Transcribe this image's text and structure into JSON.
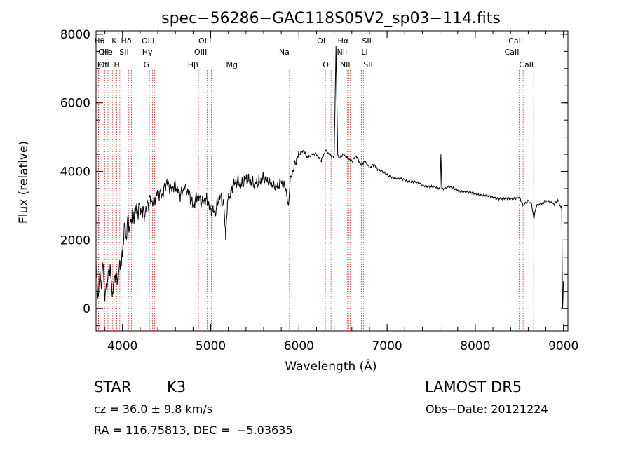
{
  "chart_data": {
    "type": "line",
    "title": "spec−56286−GAC118S05V2_sp03−114.fits",
    "xlabel": "Wavelength (Å)",
    "ylabel": "Flux (relative)",
    "xlim": [
      3700,
      9050
    ],
    "ylim": [
      -650,
      8100
    ],
    "xticks": [
      4000,
      5000,
      6000,
      7000,
      8000,
      9000
    ],
    "yticks": [
      0,
      2000,
      4000,
      6000,
      8000
    ],
    "grid": false,
    "series": [
      {
        "x": [
          3700,
          3720,
          3740,
          3760,
          3780,
          3800,
          3820,
          3840,
          3860,
          3880,
          3900,
          3920,
          3940,
          3960,
          3980,
          4000,
          4020,
          4040,
          4060,
          4080,
          4100,
          4150,
          4200,
          4250,
          4300,
          4350,
          4400,
          4450,
          4500,
          4550,
          4600,
          4650,
          4700,
          4750,
          4800,
          4850,
          4900,
          4950,
          5000,
          5050,
          5100,
          5150,
          5170,
          5190,
          5250,
          5300,
          5350,
          5400,
          5450,
          5500,
          5550,
          5600,
          5650,
          5700,
          5750,
          5800,
          5850,
          5880,
          5900,
          5950,
          6000,
          6050,
          6100,
          6150,
          6200,
          6250,
          6300,
          6350,
          6400,
          6420,
          6440,
          6460,
          6500,
          6550,
          6600,
          6650,
          6700,
          6750,
          6800,
          6850,
          6900,
          7000,
          7100,
          7200,
          7300,
          7400,
          7500,
          7600,
          7610,
          7620,
          7700,
          7800,
          7900,
          8000,
          8100,
          8200,
          8300,
          8400,
          8500,
          8540,
          8560,
          8600,
          8640,
          8665,
          8690,
          8750,
          8800,
          8850,
          8900,
          8940,
          8960,
          8980,
          8990,
          9000
        ],
        "y": [
          1400,
          300,
          900,
          600,
          1300,
          200,
          700,
          1100,
          1300,
          500,
          800,
          1000,
          700,
          1100,
          1200,
          1500,
          2500,
          2100,
          2700,
          2400,
          2600,
          2900,
          2900,
          2700,
          3200,
          3100,
          3400,
          3300,
          3700,
          3500,
          3600,
          3300,
          3500,
          3400,
          3000,
          3300,
          3100,
          3200,
          2900,
          2800,
          3300,
          3000,
          2000,
          3100,
          3600,
          3700,
          3600,
          3800,
          3700,
          3650,
          3700,
          3800,
          3700,
          3600,
          3550,
          3700,
          3500,
          3000,
          3700,
          4200,
          4500,
          4600,
          4400,
          4500,
          4500,
          4300,
          4600,
          4500,
          4400,
          7650,
          4500,
          4400,
          4500,
          4400,
          4300,
          4450,
          4200,
          4300,
          4100,
          4200,
          4050,
          3900,
          3800,
          3750,
          3700,
          3600,
          3550,
          3500,
          4500,
          3500,
          3550,
          3450,
          3400,
          3350,
          3300,
          3250,
          3200,
          3200,
          3250,
          3000,
          3050,
          3150,
          3050,
          2600,
          3000,
          3050,
          3150,
          3100,
          3050,
          3150,
          3000,
          2900,
          0,
          800
        ]
      }
    ],
    "line_markers": [
      {
        "label": "Hθ",
        "x": 3798,
        "row": 1,
        "align": "end"
      },
      {
        "label": "K",
        "x": 3934,
        "row": 1,
        "align": "end"
      },
      {
        "label": "Hδ",
        "x": 4102,
        "row": 1,
        "align": "end"
      },
      {
        "label": "OII",
        "x": 3727,
        "row": 2,
        "align": "start"
      },
      {
        "label": "He",
        "x": 3889,
        "row": 2,
        "align": "end"
      },
      {
        "label": "SII",
        "x": 4072,
        "row": 2,
        "align": "end"
      },
      {
        "label": "OII",
        "x": 3729,
        "row": 3,
        "align": "start"
      },
      {
        "label": "Hη",
        "x": 3835,
        "row": 3,
        "align": "end"
      },
      {
        "label": "H",
        "x": 3969,
        "row": 3,
        "align": "end"
      },
      {
        "label": "OIII",
        "x": 4363,
        "row": 1,
        "align": "end"
      },
      {
        "label": "Hγ",
        "x": 4340,
        "row": 2,
        "align": "end"
      },
      {
        "label": "G",
        "x": 4305,
        "row": 3,
        "align": "end"
      },
      {
        "label": "OIII",
        "x": 5007,
        "row": 1,
        "align": "end"
      },
      {
        "label": "OIII",
        "x": 4959,
        "row": 2,
        "align": "end"
      },
      {
        "label": "Hβ",
        "x": 4861,
        "row": 3,
        "align": "end"
      },
      {
        "label": "Mg",
        "x": 5175,
        "row": 3,
        "align": "start"
      },
      {
        "label": "Na",
        "x": 5893,
        "row": 2,
        "align": "end"
      },
      {
        "label": "OI",
        "x": 6300,
        "row": 1,
        "align": "end"
      },
      {
        "label": "OI",
        "x": 6364,
        "row": 3,
        "align": "end"
      },
      {
        "label": "Hα",
        "x": 6563,
        "row": 1,
        "align": "end"
      },
      {
        "label": "SII",
        "x": 6716,
        "row": 1,
        "align": "start"
      },
      {
        "label": "NII",
        "x": 6548,
        "row": 2,
        "align": "end"
      },
      {
        "label": "Li",
        "x": 6708,
        "row": 2,
        "align": "start"
      },
      {
        "label": "NII",
        "x": 6583,
        "row": 3,
        "align": "end"
      },
      {
        "label": "SII",
        "x": 6731,
        "row": 3,
        "align": "start"
      },
      {
        "label": "CaII",
        "x": 8542,
        "row": 1,
        "align": "end"
      },
      {
        "label": "CaII",
        "x": 8498,
        "row": 2,
        "align": "end"
      },
      {
        "label": "CaII",
        "x": 8662,
        "row": 3,
        "align": "end"
      }
    ]
  },
  "info": {
    "object_class": "STAR",
    "subclass": "K3",
    "survey": "LAMOST DR5",
    "redshift_label": "cz = 36.0 ± 9.8 km/s",
    "obs_date": "Obs−Date: 20121224",
    "coords": "RA = 116.75813, DEC =  −5.03635"
  }
}
